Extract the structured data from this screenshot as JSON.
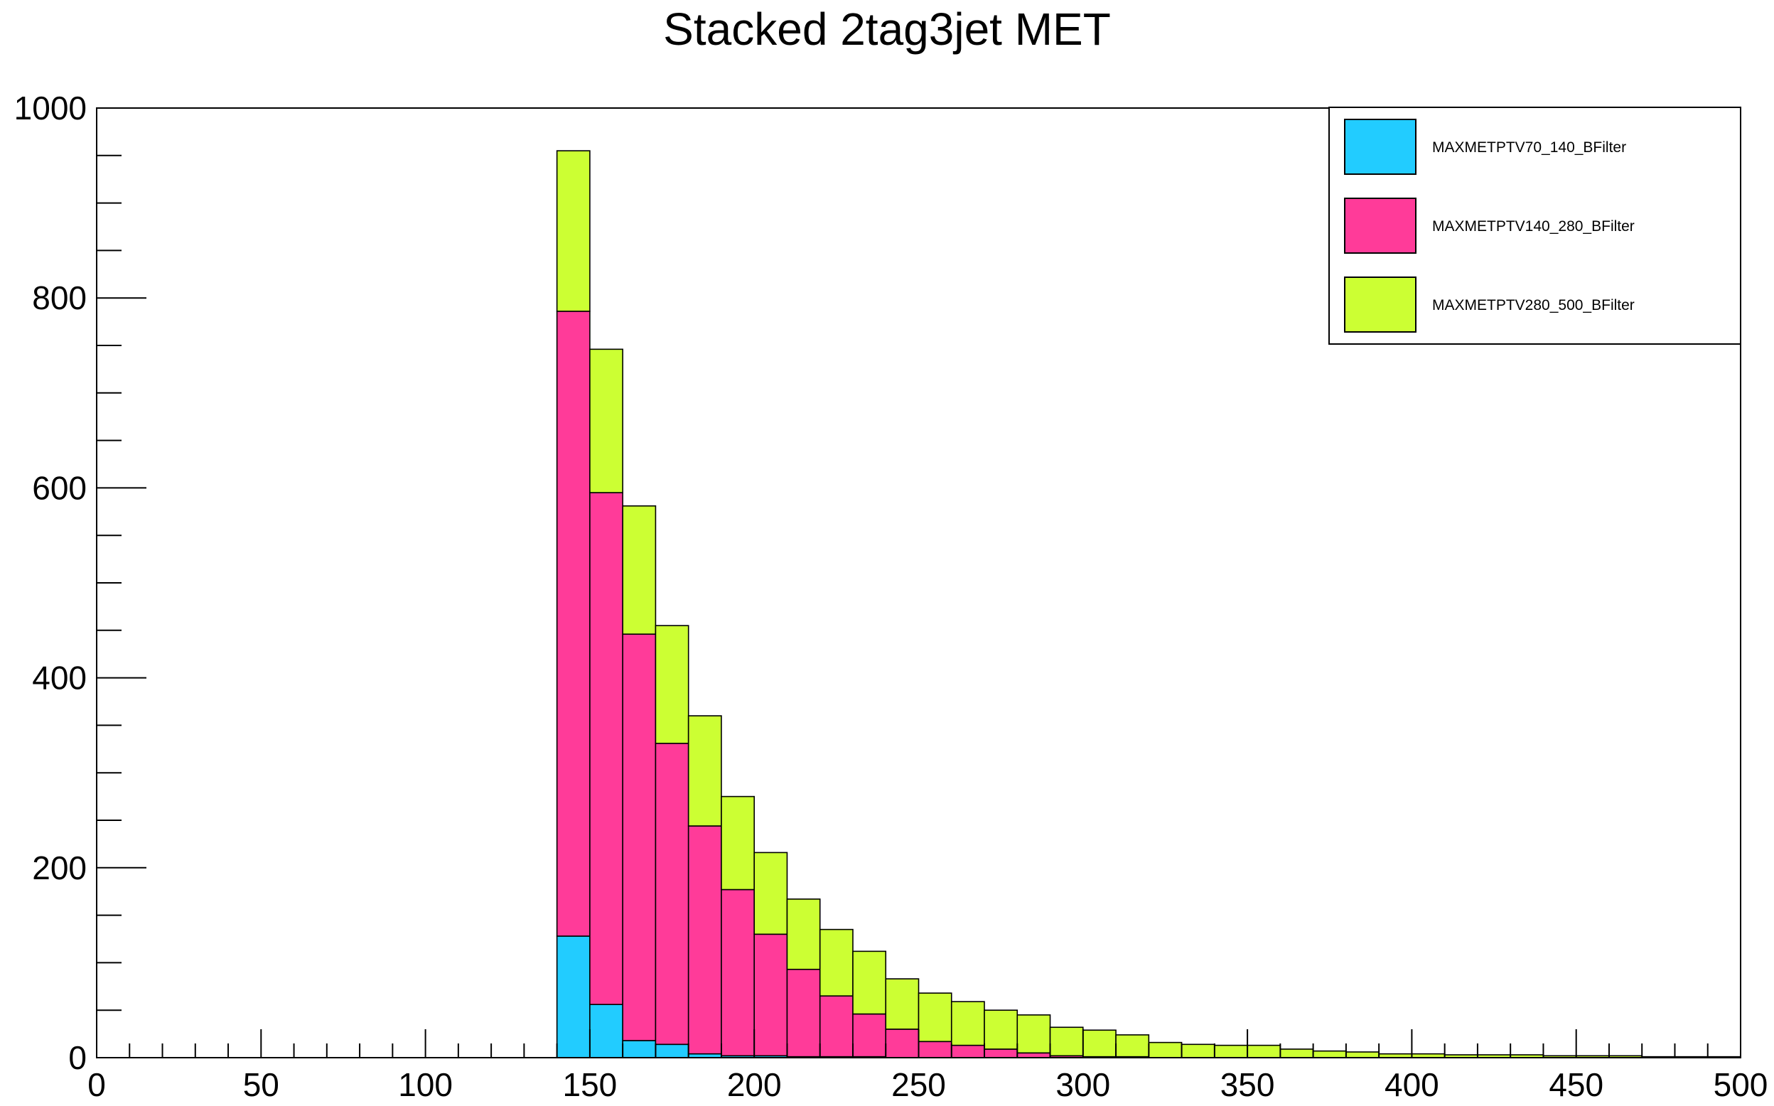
{
  "chart_data": {
    "type": "bar",
    "stacked": true,
    "histogram": true,
    "title": "Stacked 2tag3jet MET",
    "xlabel": "",
    "ylabel": "",
    "xlim": [
      0,
      500
    ],
    "ylim": [
      0,
      1000
    ],
    "bin_width": 10,
    "x_bin_starts": [
      140,
      150,
      160,
      170,
      180,
      190,
      200,
      210,
      220,
      230,
      240,
      250,
      260,
      270,
      280,
      290,
      300,
      310,
      320,
      330,
      340,
      350,
      360,
      370,
      380,
      390,
      400,
      410,
      420,
      430,
      440,
      450,
      460,
      470,
      480,
      490
    ],
    "x_ticks": [
      "0",
      "50",
      "100",
      "150",
      "200",
      "250",
      "300",
      "350",
      "400",
      "450",
      "500"
    ],
    "y_ticks": [
      "0",
      "200",
      "400",
      "600",
      "800",
      "1000"
    ],
    "grid": false,
    "legend_position": "top-right",
    "series": [
      {
        "name": "MAXMETPTV70_140_BFilter",
        "color": "#22ccff",
        "values": [
          128,
          56,
          18,
          14,
          4,
          2,
          2,
          1,
          1,
          1,
          0,
          0,
          0,
          0,
          0,
          0,
          0,
          0,
          0,
          0,
          0,
          0,
          0,
          0,
          0,
          0,
          0,
          0,
          0,
          0,
          0,
          0,
          0,
          0,
          0,
          0
        ]
      },
      {
        "name": "MAXMETPTV140_280_BFilter",
        "color": "#ff3b99",
        "values": [
          658,
          539,
          428,
          317,
          240,
          175,
          128,
          92,
          64,
          45,
          30,
          17,
          13,
          9,
          5,
          2,
          1,
          1,
          0,
          0,
          0,
          0,
          0,
          0,
          0,
          0,
          0,
          0,
          0,
          0,
          0,
          0,
          0,
          0,
          0,
          0
        ]
      },
      {
        "name": "MAXMETPTV280_500_BFilter",
        "color": "#ccff33",
        "values": [
          169,
          151,
          135,
          124,
          116,
          98,
          86,
          74,
          70,
          66,
          53,
          51,
          46,
          41,
          40,
          30,
          28,
          23,
          16,
          14,
          13,
          13,
          9,
          7,
          6,
          4,
          4,
          3,
          3,
          3,
          2,
          2,
          2,
          1,
          1,
          1
        ]
      }
    ]
  }
}
